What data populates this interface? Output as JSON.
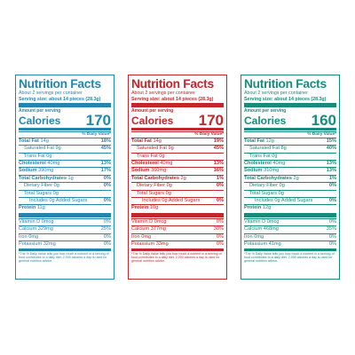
{
  "labels": [
    {
      "title": "Nutrition Facts",
      "servings": "About 2 servings per container",
      "serving_size": "Serving size: about 14 pieces (28.3g)",
      "amount_per_serving": "Amount per serving",
      "calories_label": "Calories",
      "calories": "170",
      "dv_header": "% Daily Value*",
      "nutrients": [
        {
          "name": "Total Fat",
          "amount": "14g",
          "dv": "18%"
        },
        {
          "name": "Saturated Fat",
          "amount": "9g",
          "dv": "45%"
        },
        {
          "name": "Trans Fat",
          "amount": "0g",
          "dv": ""
        },
        {
          "name": "Cholesterol",
          "amount": "40mg",
          "dv": "13%"
        },
        {
          "name": "Sodium",
          "amount": "390mg",
          "dv": "17%"
        },
        {
          "name": "Total Carbohydrates",
          "amount": "1g",
          "dv": "0%"
        },
        {
          "name": "Dietary Fiber",
          "amount": "0g",
          "dv": "0%"
        },
        {
          "name": "Total Sugars",
          "amount": "0g",
          "dv": ""
        },
        {
          "name": "Includes 0g Added Sugars",
          "amount": "",
          "dv": "0%"
        },
        {
          "name": "Protein",
          "amount": "11g",
          "dv": ""
        }
      ],
      "vitamins": [
        {
          "name": "Vitamin D",
          "amount": "0mcg",
          "dv": "0%"
        },
        {
          "name": "Calcium",
          "amount": "329mg",
          "dv": "25%"
        },
        {
          "name": "Iron",
          "amount": "0mg",
          "dv": "0%"
        },
        {
          "name": "Potassium",
          "amount": "32mg",
          "dv": "0%"
        }
      ],
      "footnote": "*The % Daily Value tells you how much a nutrient in a serving of food contributes to a daily diet. 2,000 calories a day is used for general nutrition advice.",
      "color": "#2586ad"
    },
    {
      "title": "Nutrition Facts",
      "servings": "About 2 servings per container",
      "serving_size": "Serving size: about 14 pieces (28.3g)",
      "amount_per_serving": "Amount per serving",
      "calories_label": "Calories",
      "calories": "170",
      "dv_header": "% Daily Value*",
      "nutrients": [
        {
          "name": "Total Fat",
          "amount": "14g",
          "dv": "19%"
        },
        {
          "name": "Saturated Fat",
          "amount": "9g",
          "dv": "45%"
        },
        {
          "name": "Trans Fat",
          "amount": "0g",
          "dv": ""
        },
        {
          "name": "Cholesterol",
          "amount": "40mg",
          "dv": "13%"
        },
        {
          "name": "Sodium",
          "amount": "360mg",
          "dv": "16%"
        },
        {
          "name": "Total Carbohydrates",
          "amount": "2g",
          "dv": "1%"
        },
        {
          "name": "Dietary Fiber",
          "amount": "0g",
          "dv": "0%"
        },
        {
          "name": "Total Sugars",
          "amount": "0g",
          "dv": ""
        },
        {
          "name": "Includes 0g Added Sugars",
          "amount": "",
          "dv": "0%"
        },
        {
          "name": "Protein",
          "amount": "10g",
          "dv": ""
        }
      ],
      "vitamins": [
        {
          "name": "Vitamin D",
          "amount": "0mcg",
          "dv": "0%"
        },
        {
          "name": "Calcium",
          "amount": "377mg",
          "dv": "30%"
        },
        {
          "name": "Iron",
          "amount": "0mg",
          "dv": "0%"
        },
        {
          "name": "Potassium",
          "amount": "33mg",
          "dv": "0%"
        }
      ],
      "footnote": "*The % Daily Value tells you how much a nutrient in a serving of food contributes to a daily diet. 2,000 calories a day is used for general nutrition advice.",
      "color": "#c1272d"
    },
    {
      "title": "Nutrition Facts",
      "servings": "About 2 servings per container",
      "serving_size": "Serving size: about 14 pieces (28.3g)",
      "amount_per_serving": "Amount per serving",
      "calories_label": "Calories",
      "calories": "160",
      "dv_header": "% Daily Value*",
      "nutrients": [
        {
          "name": "Total Fat",
          "amount": "12g",
          "dv": "15%"
        },
        {
          "name": "Saturated Fat",
          "amount": "8g",
          "dv": "40%"
        },
        {
          "name": "Trans Fat",
          "amount": "0g",
          "dv": ""
        },
        {
          "name": "Cholesterol",
          "amount": "40mg",
          "dv": "13%"
        },
        {
          "name": "Sodium",
          "amount": "310mg",
          "dv": "13%"
        },
        {
          "name": "Total Carbohydrates",
          "amount": "2g",
          "dv": "1%"
        },
        {
          "name": "Dietary Fiber",
          "amount": "0g",
          "dv": "0%"
        },
        {
          "name": "Total Sugars",
          "amount": "0g",
          "dv": ""
        },
        {
          "name": "Includes 0g Added Sugars",
          "amount": "",
          "dv": "0%"
        },
        {
          "name": "Protein",
          "amount": "12g",
          "dv": ""
        }
      ],
      "vitamins": [
        {
          "name": "Vitamin D",
          "amount": "0mcg",
          "dv": "0%"
        },
        {
          "name": "Calcium",
          "amount": "468mg",
          "dv": "35%"
        },
        {
          "name": "Iron",
          "amount": "0mg",
          "dv": "0%"
        },
        {
          "name": "Potassium",
          "amount": "41mg",
          "dv": "0%"
        }
      ],
      "footnote": "*The % Daily Value tells you how much a nutrient in a serving of food contributes to a daily diet. 2,000 calories a day is used for general nutrition advice.",
      "color": "#178c7c"
    }
  ]
}
